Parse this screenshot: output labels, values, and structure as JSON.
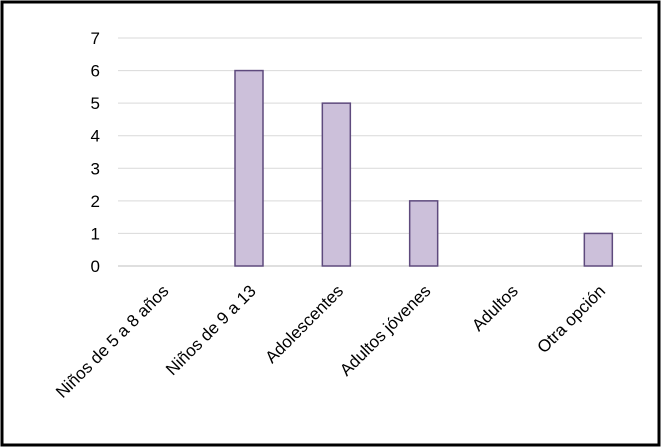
{
  "chart_data": {
    "type": "bar",
    "categories": [
      "Niños de 5 a 8 años",
      "Niños de 9 a 13",
      "Adolescentes",
      "Adultos jóvenes",
      "Adultos",
      "Otra opción"
    ],
    "values": [
      0,
      6,
      5,
      2,
      0,
      1
    ],
    "ylim": [
      0,
      7
    ],
    "yticks": [
      0,
      1,
      2,
      3,
      4,
      5,
      6,
      7
    ],
    "title": "",
    "xlabel": "",
    "ylabel": "",
    "grid": true,
    "legend": "none",
    "colors": {
      "bar_fill": "#ccc0da",
      "bar_stroke": "#5e4a7d",
      "grid": "#d9d9d9",
      "frame": "#000000"
    }
  }
}
